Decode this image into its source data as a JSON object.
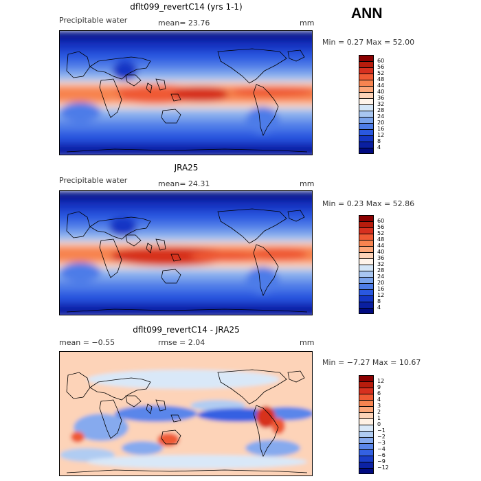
{
  "season": "ANN",
  "panels": [
    {
      "title": "dflt099_revertC14 (yrs 1-1)",
      "left_label": "Precipitable water",
      "center_label": "mean=  23.76",
      "units": "mm",
      "minmax": "Min =    0.27  Max =   52.00",
      "levels": [
        "60",
        "56",
        "52",
        "48",
        "44",
        "40",
        "36",
        "32",
        "28",
        "24",
        "20",
        "16",
        "12",
        "8",
        "4"
      ],
      "colors": [
        "#8b0000",
        "#b71c0c",
        "#d7301f",
        "#ef5a34",
        "#f78450",
        "#fca77a",
        "#fdd3b8",
        "#fff4ea",
        "#d3e5f7",
        "#a8c6f1",
        "#7aa3ec",
        "#4d7ce8",
        "#2a58e0",
        "#1436c4",
        "#0a1fa0",
        "#000a80"
      ]
    },
    {
      "title": "JRA25",
      "left_label": "Precipitable water",
      "center_label": "mean=  24.31",
      "units": "mm",
      "minmax": "Min =    0.23  Max =   52.86",
      "levels": [
        "60",
        "56",
        "52",
        "48",
        "44",
        "40",
        "36",
        "32",
        "28",
        "24",
        "20",
        "16",
        "12",
        "8",
        "4"
      ],
      "colors": [
        "#8b0000",
        "#b71c0c",
        "#d7301f",
        "#ef5a34",
        "#f78450",
        "#fca77a",
        "#fdd3b8",
        "#fff4ea",
        "#d3e5f7",
        "#a8c6f1",
        "#7aa3ec",
        "#4d7ce8",
        "#2a58e0",
        "#1436c4",
        "#0a1fa0",
        "#000a80"
      ]
    },
    {
      "title": "dflt099_revertC14 - JRA25",
      "left_label": "mean =  −0.55",
      "center_label": "rmse =   2.04",
      "units": "mm",
      "minmax": "Min =  −7.27  Max =  10.67",
      "levels": [
        "12",
        "9",
        "6",
        "4",
        "3",
        "2",
        "1",
        "0",
        "−1",
        "−2",
        "−3",
        "−4",
        "−6",
        "−9",
        "−12"
      ],
      "colors": [
        "#8b0000",
        "#b71c0c",
        "#d7301f",
        "#ef5a34",
        "#f78450",
        "#fca77a",
        "#fdd3b8",
        "#fff1e4",
        "#d9e8f8",
        "#b0ccf2",
        "#86aaee",
        "#5a86ea",
        "#3461e2",
        "#1a3dc8",
        "#0c22a4",
        "#000a80"
      ]
    }
  ]
}
